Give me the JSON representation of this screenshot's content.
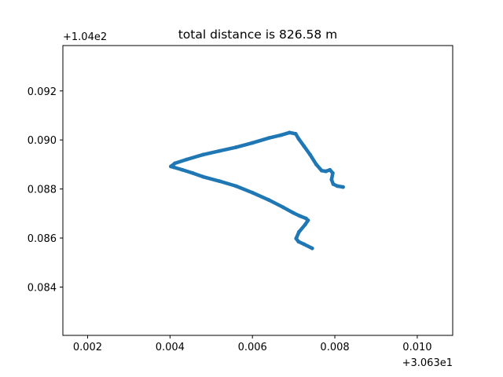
{
  "chart_data": {
    "type": "scatter",
    "title": "total distance is 826.58 m",
    "xlabel": "",
    "ylabel": "",
    "x_offset_label": "+3.063e1",
    "y_offset_label": "+1.04e2",
    "xlim": [
      0.0014,
      0.01086
    ],
    "ylim": [
      0.08203,
      0.09385
    ],
    "x_ticks": [
      {
        "value": 0.002,
        "label": "0.002"
      },
      {
        "value": 0.004,
        "label": "0.004"
      },
      {
        "value": 0.006,
        "label": "0.006"
      },
      {
        "value": 0.008,
        "label": "0.008"
      },
      {
        "value": 0.01,
        "label": "0.010"
      }
    ],
    "y_ticks": [
      {
        "value": 0.084,
        "label": "0.084"
      },
      {
        "value": 0.086,
        "label": "0.086"
      },
      {
        "value": 0.088,
        "label": "0.088"
      },
      {
        "value": 0.09,
        "label": "0.090"
      },
      {
        "value": 0.092,
        "label": "0.092"
      }
    ],
    "grid": false,
    "series": [
      {
        "color": "#1f77b4",
        "marker": "dot",
        "x": [
          0.00745,
          0.00725,
          0.00712,
          0.00706,
          0.00713,
          0.00728,
          0.00735,
          0.0073,
          0.00715,
          0.007,
          0.00675,
          0.0064,
          0.006,
          0.0056,
          0.0052,
          0.0048,
          0.00455,
          0.0043,
          0.0041,
          0.00402,
          0.00412,
          0.0044,
          0.0048,
          0.0052,
          0.0056,
          0.006,
          0.0064,
          0.0067,
          0.0069,
          0.00705,
          0.00712,
          0.00725,
          0.0074,
          0.00755,
          0.00768,
          0.00778,
          0.00788,
          0.00795,
          0.00792,
          0.00796,
          0.00806,
          0.0082
        ],
        "y": [
          0.08558,
          0.08575,
          0.08585,
          0.08598,
          0.08625,
          0.08655,
          0.08672,
          0.0868,
          0.0869,
          0.08702,
          0.08725,
          0.08755,
          0.08785,
          0.08812,
          0.08832,
          0.0885,
          0.08865,
          0.08878,
          0.08888,
          0.08892,
          0.08905,
          0.0892,
          0.0894,
          0.08955,
          0.0897,
          0.08988,
          0.09008,
          0.0902,
          0.0903,
          0.09025,
          0.09005,
          0.08975,
          0.0894,
          0.089,
          0.08875,
          0.08872,
          0.08878,
          0.08865,
          0.08838,
          0.0882,
          0.08812,
          0.08808
        ]
      }
    ]
  }
}
